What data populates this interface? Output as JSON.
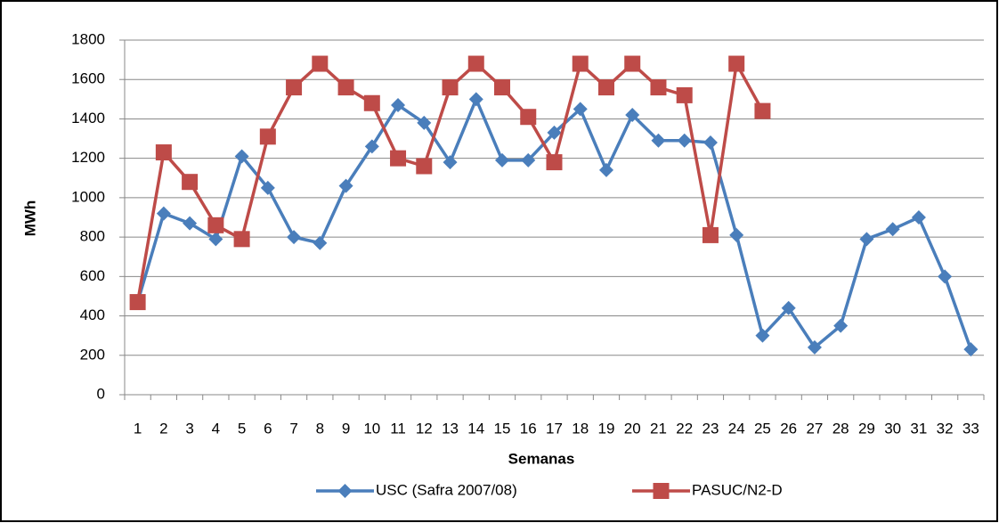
{
  "chart_data": {
    "type": "line",
    "x_label": "Semanas",
    "y_label": "MWh",
    "categories": [
      "1",
      "2",
      "3",
      "4",
      "5",
      "6",
      "7",
      "8",
      "9",
      "10",
      "11",
      "12",
      "13",
      "14",
      "15",
      "16",
      "17",
      "18",
      "19",
      "20",
      "21",
      "22",
      "23",
      "24",
      "25",
      "26",
      "27",
      "28",
      "29",
      "30",
      "31",
      "32",
      "33"
    ],
    "series": [
      {
        "name": "USC (Safra 2007/08)",
        "color": "#4a7ebb",
        "marker": "diamond",
        "values": [
          470,
          920,
          870,
          790,
          1210,
          1050,
          800,
          770,
          1060,
          1260,
          1470,
          1380,
          1180,
          1500,
          1190,
          1190,
          1330,
          1450,
          1140,
          1420,
          1290,
          1290,
          1280,
          810,
          300,
          440,
          240,
          350,
          790,
          840,
          900,
          600,
          230
        ]
      },
      {
        "name": "PASUC/N2-D",
        "color": "#be4b48",
        "marker": "square",
        "values": [
          470,
          1230,
          1080,
          860,
          790,
          1310,
          1560,
          1680,
          1560,
          1480,
          1200,
          1160,
          1560,
          1680,
          1560,
          1410,
          1180,
          1680,
          1560,
          1680,
          1560,
          1520,
          810,
          1680,
          1440,
          null,
          null,
          null,
          null,
          null,
          null,
          null,
          null
        ]
      }
    ],
    "ylim": [
      0,
      1800
    ],
    "yticks": [
      0,
      200,
      400,
      600,
      800,
      1000,
      1200,
      1400,
      1600,
      1800
    ],
    "grid": true,
    "legend": "bottom"
  }
}
